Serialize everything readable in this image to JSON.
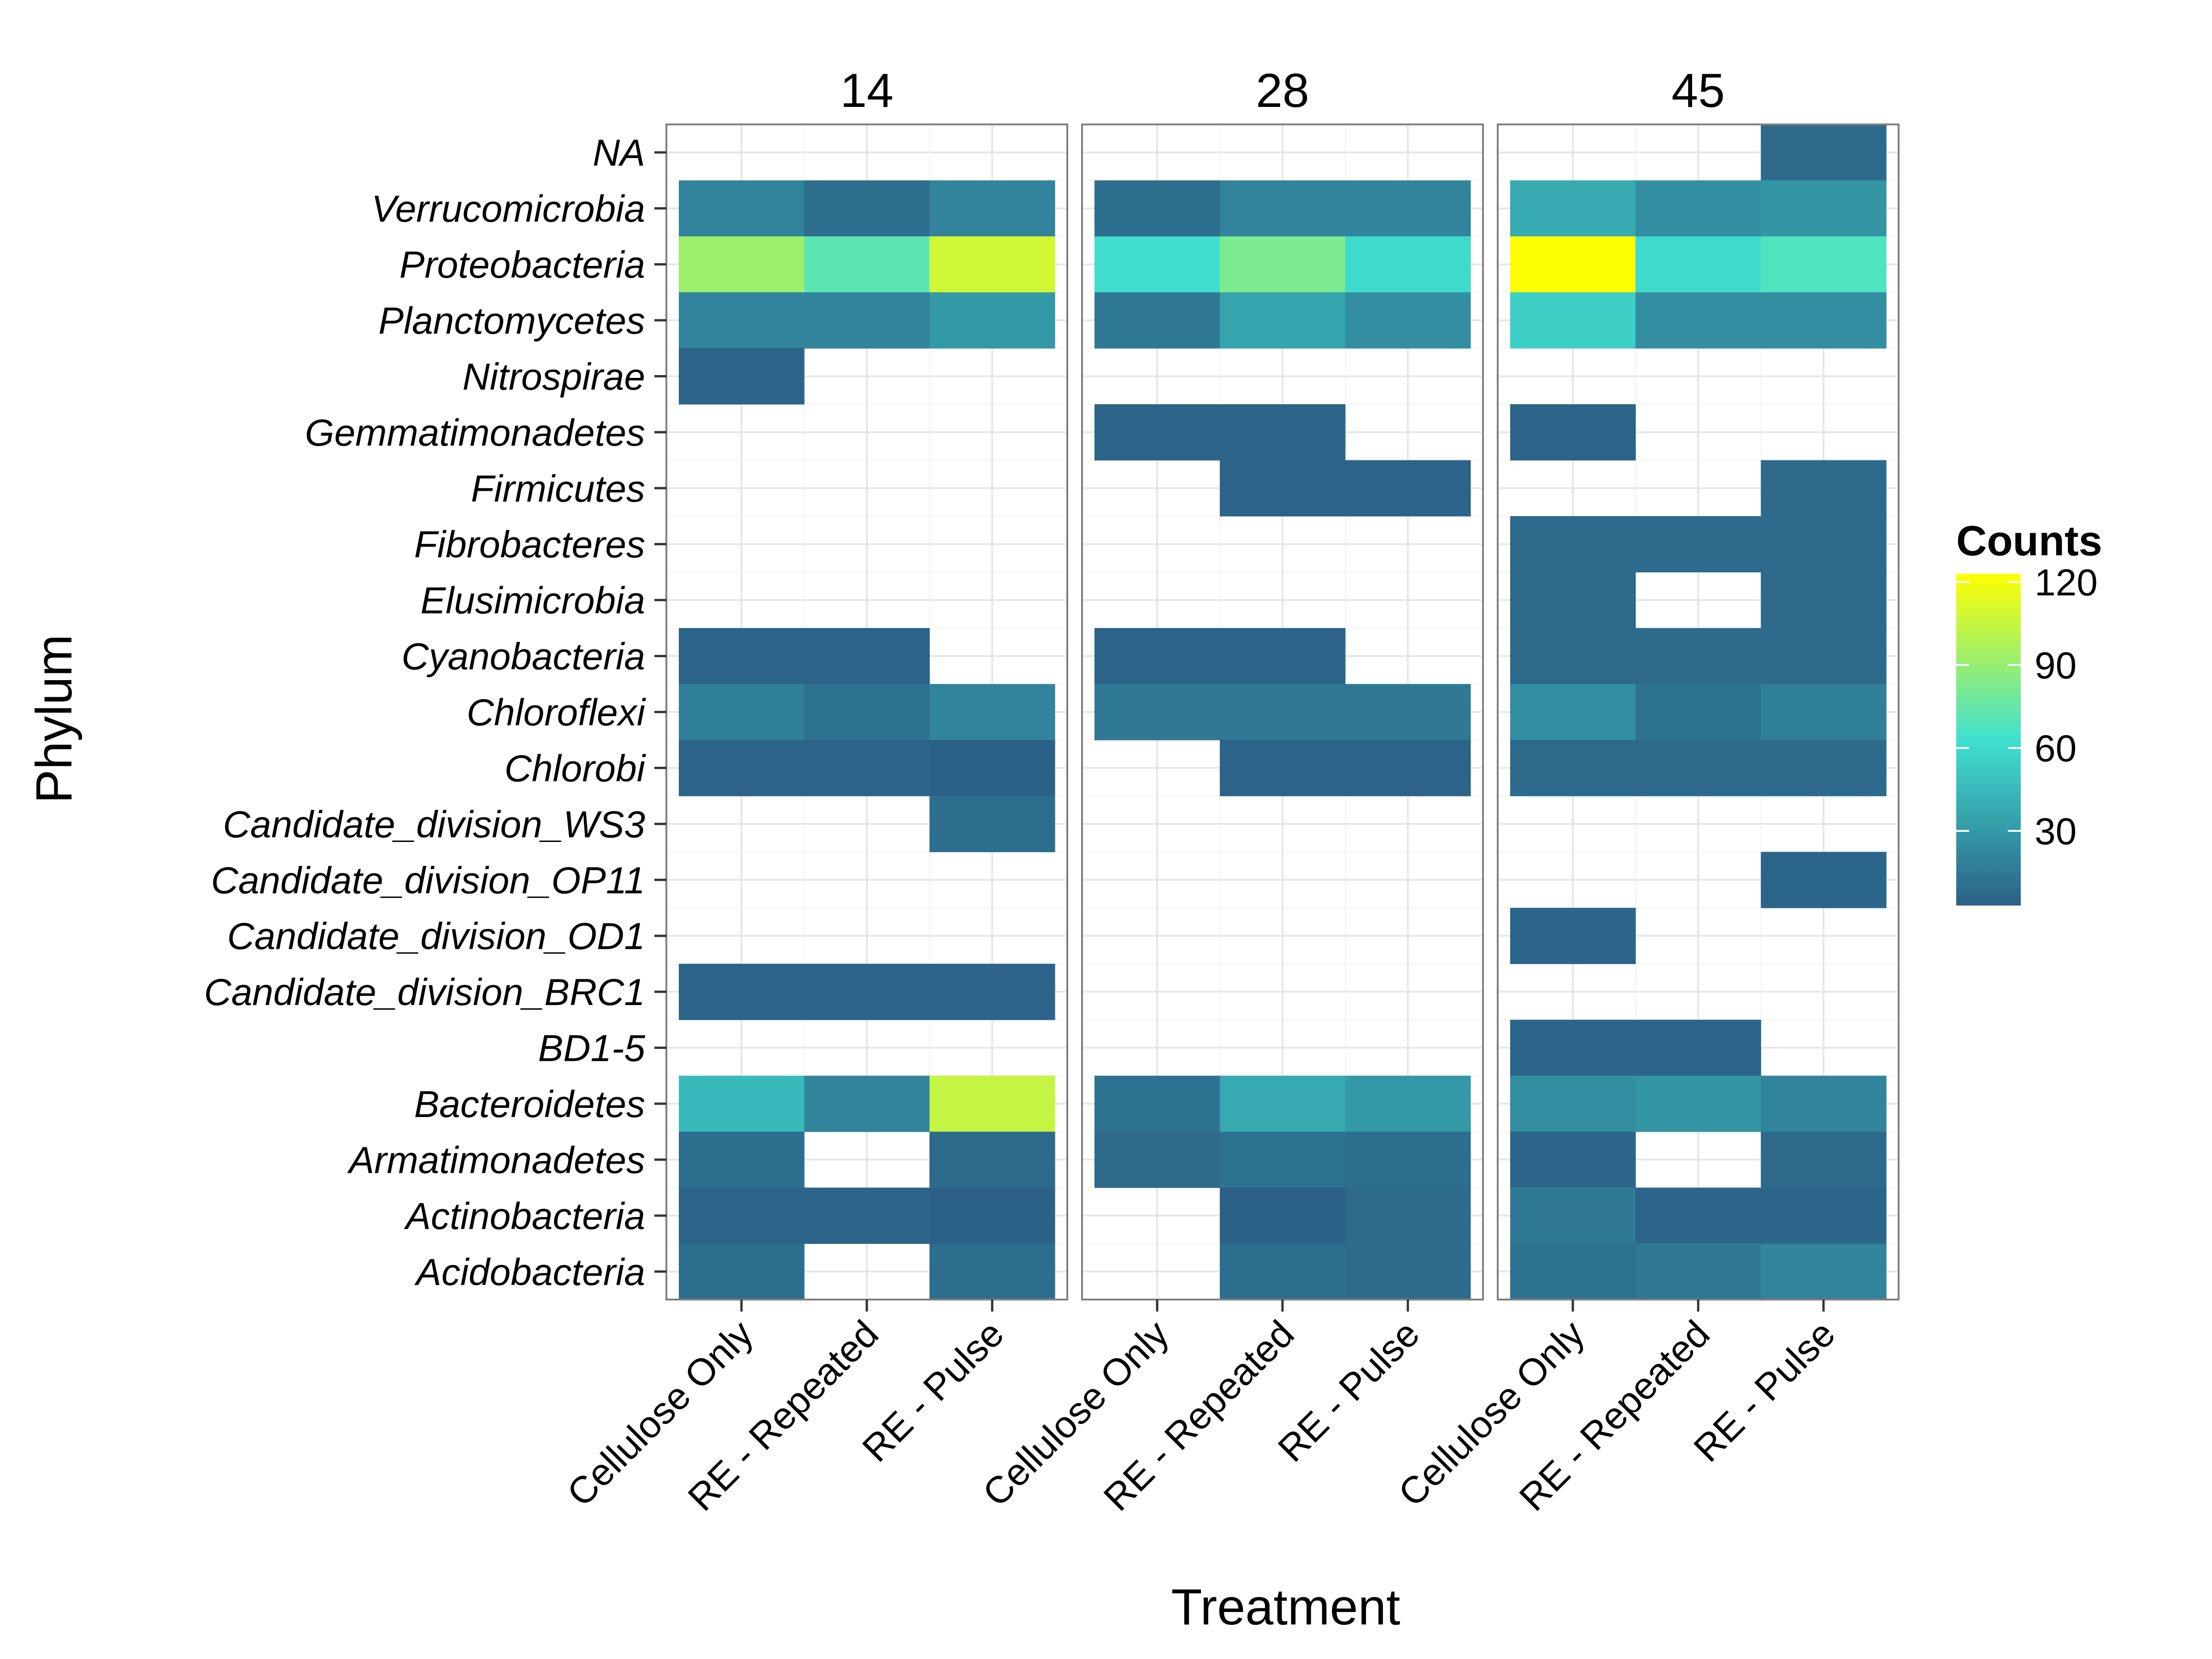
{
  "chart_data": {
    "type": "heatmap",
    "facets": [
      "14",
      "28",
      "45"
    ],
    "xlabel": "Treatment",
    "ylabel": "Phylum",
    "x_categories": [
      "Cellulose Only",
      "RE - Repeated",
      "RE - Pulse"
    ],
    "y_categories": [
      "NA",
      "Verrucomicrobia",
      "Proteobacteria",
      "Planctomycetes",
      "Nitrospirae",
      "Gemmatimonadetes",
      "Firmicutes",
      "Fibrobacteres",
      "Elusimicrobia",
      "Cyanobacteria",
      "Chloroflexi",
      "Chlorobi",
      "Candidate_division_WS3",
      "Candidate_division_OP11",
      "Candidate_division_OD1",
      "Candidate_division_BRC1",
      "BD1-5",
      "Bacteroidetes",
      "Armatimonadetes",
      "Actinobacteria",
      "Acidobacteria"
    ],
    "values": {
      "14": {
        "NA": [
          null,
          null,
          null
        ],
        "Verrucomicrobia": [
          20,
          10,
          20
        ],
        "Proteobacteria": [
          92,
          72,
          108
        ],
        "Planctomycetes": [
          20,
          20,
          30
        ],
        "Nitrospirae": [
          5,
          null,
          null
        ],
        "Gemmatimonadetes": [
          null,
          null,
          null
        ],
        "Firmicutes": [
          null,
          null,
          null
        ],
        "Fibrobacteres": [
          null,
          null,
          null
        ],
        "Elusimicrobia": [
          null,
          null,
          null
        ],
        "Cyanobacteria": [
          5,
          5,
          null
        ],
        "Chloroflexi": [
          18,
          12,
          20
        ],
        "Chlorobi": [
          5,
          5,
          4
        ],
        "Candidate_division_WS3": [
          null,
          null,
          10
        ],
        "Candidate_division_OP11": [
          null,
          null,
          null
        ],
        "Candidate_division_OD1": [
          null,
          null,
          null
        ],
        "Candidate_division_BRC1": [
          5,
          5,
          5
        ],
        "BD1-5": [
          null,
          null,
          null
        ],
        "Bacteroidetes": [
          45,
          20,
          104
        ],
        "Armatimonadetes": [
          10,
          null,
          8
        ],
        "Actinobacteria": [
          5,
          5,
          4
        ],
        "Acidobacteria": [
          10,
          null,
          10
        ]
      },
      "28": {
        "NA": [
          null,
          null,
          null
        ],
        "Verrucomicrobia": [
          10,
          20,
          20
        ],
        "Proteobacteria": [
          62,
          82,
          60
        ],
        "Planctomycetes": [
          15,
          35,
          25
        ],
        "Nitrospirae": [
          null,
          null,
          null
        ],
        "Gemmatimonadetes": [
          5,
          5,
          null
        ],
        "Firmicutes": [
          null,
          5,
          5
        ],
        "Fibrobacteres": [
          null,
          null,
          null
        ],
        "Elusimicrobia": [
          null,
          null,
          null
        ],
        "Cyanobacteria": [
          5,
          5,
          null
        ],
        "Chloroflexi": [
          15,
          15,
          15
        ],
        "Chlorobi": [
          null,
          5,
          5
        ],
        "Candidate_division_WS3": [
          null,
          null,
          null
        ],
        "Candidate_division_OP11": [
          null,
          null,
          null
        ],
        "Candidate_division_OD1": [
          null,
          null,
          null
        ],
        "Candidate_division_BRC1": [
          null,
          null,
          null
        ],
        "BD1-5": [
          null,
          null,
          null
        ],
        "Bacteroidetes": [
          12,
          38,
          30
        ],
        "Armatimonadetes": [
          8,
          12,
          10
        ],
        "Actinobacteria": [
          null,
          4,
          8
        ],
        "Acidobacteria": [
          null,
          10,
          8
        ]
      },
      "45": {
        "NA": [
          null,
          null,
          8
        ],
        "Verrucomicrobia": [
          38,
          25,
          28
        ],
        "Proteobacteria": [
          122,
          60,
          68
        ],
        "Planctomycetes": [
          55,
          25,
          25
        ],
        "Nitrospirae": [
          null,
          null,
          null
        ],
        "Gemmatimonadetes": [
          5,
          null,
          null
        ],
        "Firmicutes": [
          null,
          null,
          8
        ],
        "Fibrobacteres": [
          8,
          8,
          8
        ],
        "Elusimicrobia": [
          8,
          null,
          8
        ],
        "Cyanobacteria": [
          8,
          8,
          8
        ],
        "Chloroflexi": [
          25,
          12,
          18
        ],
        "Chlorobi": [
          8,
          8,
          8
        ],
        "Candidate_division_WS3": [
          null,
          null,
          null
        ],
        "Candidate_division_OP11": [
          null,
          null,
          6
        ],
        "Candidate_division_OD1": [
          6,
          null,
          null
        ],
        "Candidate_division_BRC1": [
          null,
          null,
          null
        ],
        "BD1-5": [
          6,
          6,
          null
        ],
        "Bacteroidetes": [
          25,
          28,
          20
        ],
        "Armatimonadetes": [
          6,
          null,
          8
        ],
        "Actinobacteria": [
          15,
          6,
          6
        ],
        "Acidobacteria": [
          12,
          15,
          20
        ]
      }
    },
    "legend": {
      "title": "Counts",
      "breaks": [
        120,
        90,
        60,
        30
      ],
      "range": [
        3,
        123
      ],
      "colors": {
        "low": "#2b5f86",
        "mid": "#40e0d0",
        "high": "#ffff00"
      },
      "placement": "right"
    },
    "grid": true
  }
}
